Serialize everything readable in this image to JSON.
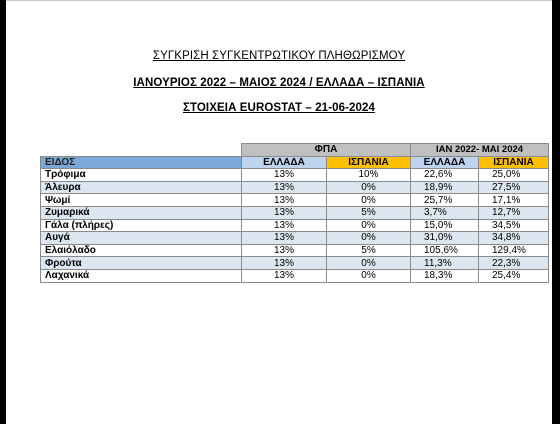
{
  "titles": {
    "line1": "ΣΥΓΚΡΙΣΗ ΣΥΓΚΕΝΤΡΩΤΙΚΟΥ ΠΛΗΘΩΡΙΣΜΟΥ",
    "line2": "ΙΑΝΟΥΡΙΟΣ 2022 – ΜΑΙΟΣ 2024 / ΕΛΛΑΔΑ – ΙΣΠΑΝΙΑ",
    "line3": "ΣΤΟΙΧΕΙΑ EUROSTAT – 21-06-2024"
  },
  "table": {
    "group_headers": {
      "fpa": "ΦΠΑ",
      "period": "ΙΑΝ 2022- ΜΑΙ 2024"
    },
    "column_headers": {
      "item": "ΕΙΔΟΣ",
      "fpa_greece": "ΕΛΛΑΔΑ",
      "fpa_spain": "ΙΣΠΑΝΙΑ",
      "period_greece": "ΕΛΛΑΔΑ",
      "period_spain": "ΙΣΠΑΝΙΑ"
    },
    "rows": [
      {
        "item": "Τρόφιμα",
        "fpa_greece": "13%",
        "fpa_spain": "10%",
        "period_greece": "22,6%",
        "period_spain": "25,0%"
      },
      {
        "item": "Άλευρα",
        "fpa_greece": "13%",
        "fpa_spain": "0%",
        "period_greece": "18,9%",
        "period_spain": "27,5%"
      },
      {
        "item": "Ψωμί",
        "fpa_greece": "13%",
        "fpa_spain": "0%",
        "period_greece": "25,7%",
        "period_spain": "17,1%"
      },
      {
        "item": "Ζυμαρικά",
        "fpa_greece": "13%",
        "fpa_spain": "5%",
        "period_greece": "3,7%",
        "period_spain": "12,7%"
      },
      {
        "item": "Γάλα (πλήρες)",
        "fpa_greece": "13%",
        "fpa_spain": "0%",
        "period_greece": "15,0%",
        "period_spain": "34,5%"
      },
      {
        "item": "Αυγά",
        "fpa_greece": "13%",
        "fpa_spain": "0%",
        "period_greece": "31,0%",
        "period_spain": "34,8%"
      },
      {
        "item": "Ελαιόλαδο",
        "fpa_greece": "13%",
        "fpa_spain": "5%",
        "period_greece": "105,6%",
        "period_spain": "129,4%"
      },
      {
        "item": "Φρούτα",
        "fpa_greece": "13%",
        "fpa_spain": "0%",
        "period_greece": "11,3%",
        "period_spain": "22,3%"
      },
      {
        "item": "Λαχανικά",
        "fpa_greece": "13%",
        "fpa_spain": "0%",
        "period_greece": "18,3%",
        "period_spain": "25,4%"
      }
    ]
  },
  "colors": {
    "header_item": "#7da7d8",
    "header_greece": "#bdd3ee",
    "header_spain": "#ffc000",
    "group_header": "#c0c0c0",
    "row_alt": "#dce6f1"
  }
}
